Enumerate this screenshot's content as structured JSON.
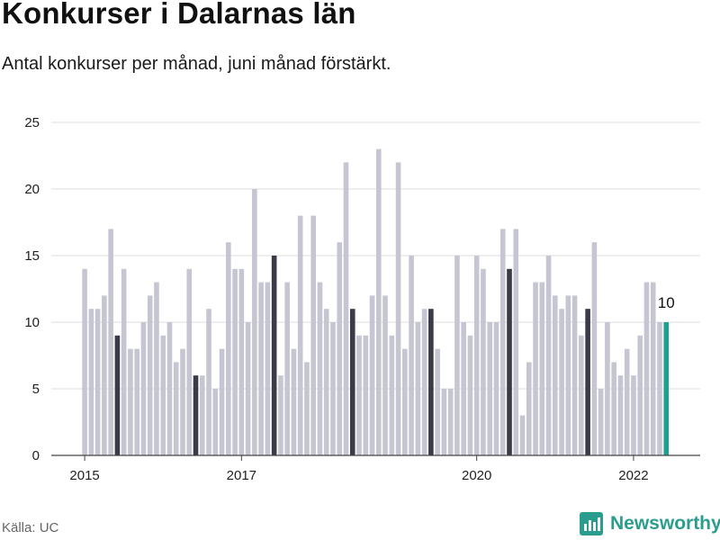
{
  "chart_data": {
    "type": "bar",
    "title": "Konkurser i Dalarnas län",
    "subtitle": "Antal konkurser per månad, juni månad förstärkt.",
    "source": "Källa: UC",
    "brand": "Newsworthy",
    "start_year": 2015,
    "start_month": 1,
    "highlight_month": 6,
    "ylim": [
      0,
      25
    ],
    "yticks": [
      0,
      5,
      10,
      15,
      20,
      25
    ],
    "xticks": [
      {
        "label": "2015",
        "year": 2015
      },
      {
        "label": "2017",
        "year": 2017
      },
      {
        "label": "2020",
        "year": 2020
      },
      {
        "label": "2022",
        "year": 2022
      }
    ],
    "last_value_label": "10",
    "values": [
      14,
      11,
      11,
      12,
      17,
      9,
      14,
      8,
      8,
      10,
      12,
      13,
      9,
      10,
      7,
      8,
      14,
      6,
      6,
      11,
      5,
      8,
      16,
      14,
      14,
      10,
      20,
      13,
      13,
      15,
      6,
      13,
      8,
      18,
      7,
      18,
      13,
      11,
      10,
      16,
      22,
      11,
      9,
      9,
      12,
      23,
      12,
      9,
      22,
      8,
      15,
      10,
      11,
      11,
      8,
      5,
      5,
      15,
      10,
      9,
      15,
      14,
      10,
      10,
      17,
      14,
      17,
      3,
      7,
      13,
      13,
      15,
      12,
      11,
      12,
      12,
      9,
      11,
      16,
      5,
      10,
      7,
      6,
      8,
      6,
      9,
      13,
      13,
      10,
      10
    ]
  },
  "colors": {
    "bar": "#c6c6d3",
    "highlight": "#3a3a48",
    "latest": "#1f9e95",
    "grid": "#dddddd",
    "axis": "#444444"
  }
}
